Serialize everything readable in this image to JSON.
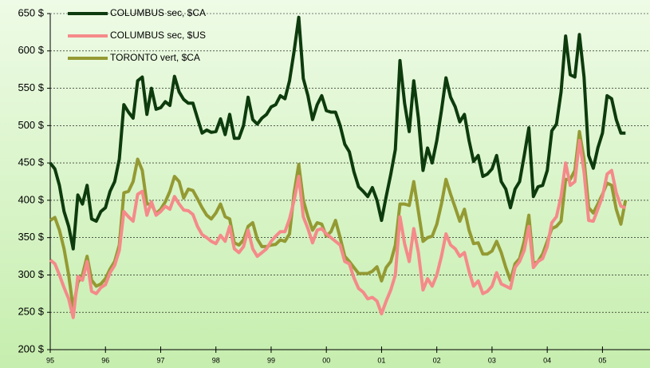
{
  "chart_data": {
    "type": "line",
    "categories": [
      "95",
      null,
      null,
      null,
      null,
      null,
      null,
      null,
      null,
      null,
      null,
      null,
      "96",
      null,
      null,
      null,
      null,
      null,
      null,
      null,
      null,
      null,
      null,
      null,
      "97",
      null,
      null,
      null,
      null,
      null,
      null,
      null,
      null,
      null,
      null,
      null,
      "98",
      null,
      null,
      null,
      null,
      null,
      null,
      null,
      null,
      null,
      null,
      null,
      "99",
      null,
      null,
      null,
      null,
      null,
      null,
      null,
      null,
      null,
      null,
      null,
      "00",
      null,
      null,
      null,
      null,
      null,
      null,
      null,
      null,
      null,
      null,
      null,
      "01",
      null,
      null,
      null,
      null,
      null,
      null,
      null,
      null,
      null,
      null,
      null,
      "02",
      null,
      null,
      null,
      null,
      null,
      null,
      null,
      null,
      null,
      null,
      null,
      "03",
      null,
      null,
      null,
      null,
      null,
      null,
      null,
      null,
      null,
      null,
      null,
      "04",
      null,
      null,
      null,
      null,
      null,
      null,
      null,
      null,
      null,
      null,
      null,
      "05",
      null,
      null,
      null,
      null,
      null
    ],
    "series": [
      {
        "name": "COLUMBUS sec, $CA",
        "color": "#0d3b0d",
        "values": [
          450,
          442,
          420,
          385,
          365,
          335,
          407,
          395,
          420,
          375,
          372,
          385,
          390,
          412,
          425,
          455,
          528,
          518,
          510,
          560,
          565,
          515,
          550,
          522,
          524,
          532,
          527,
          566,
          545,
          535,
          530,
          530,
          510,
          490,
          494,
          491,
          492,
          509,
          488,
          515,
          483,
          483,
          500,
          538,
          508,
          502,
          510,
          515,
          525,
          528,
          540,
          536,
          560,
          600,
          645,
          563,
          540,
          508,
          528,
          540,
          520,
          518,
          518,
          500,
          475,
          465,
          438,
          418,
          412,
          405,
          417,
          400,
          373,
          405,
          435,
          468,
          587,
          530,
          492,
          560,
          510,
          440,
          470,
          450,
          480,
          520,
          564,
          538,
          525,
          505,
          515,
          480,
          452,
          460,
          432,
          435,
          442,
          460,
          425,
          415,
          390,
          415,
          425,
          460,
          497,
          405,
          418,
          420,
          440,
          493,
          502,
          545,
          620,
          568,
          565,
          622,
          565,
          460,
          443,
          470,
          490,
          540,
          536,
          508,
          490,
          490
        ]
      },
      {
        "name": "COLUMBUS sec, $US",
        "color": "#f58a8a",
        "values": [
          320,
          315,
          300,
          283,
          268,
          243,
          298,
          293,
          318,
          278,
          275,
          283,
          287,
          303,
          313,
          333,
          385,
          378,
          372,
          408,
          412,
          380,
          398,
          380,
          385,
          392,
          388,
          405,
          395,
          387,
          386,
          381,
          365,
          354,
          350,
          345,
          342,
          353,
          345,
          365,
          335,
          330,
          338,
          360,
          335,
          325,
          330,
          335,
          345,
          352,
          358,
          358,
          375,
          400,
          432,
          378,
          362,
          343,
          360,
          362,
          355,
          350,
          345,
          340,
          318,
          315,
          296,
          282,
          277,
          268,
          270,
          265,
          248,
          265,
          280,
          300,
          378,
          342,
          318,
          362,
          330,
          280,
          295,
          285,
          300,
          325,
          355,
          340,
          335,
          325,
          330,
          305,
          285,
          292,
          275,
          278,
          285,
          303,
          288,
          285,
          282,
          310,
          318,
          333,
          365,
          310,
          318,
          322,
          338,
          370,
          378,
          405,
          450,
          420,
          425,
          480,
          438,
          373,
          372,
          388,
          405,
          435,
          440,
          410,
          392,
          390
        ]
      },
      {
        "name": "TORONTO vert, $CA",
        "color": "#949a33",
        "values": [
          373,
          377,
          360,
          335,
          300,
          255,
          290,
          300,
          325,
          293,
          285,
          288,
          295,
          308,
          318,
          340,
          410,
          412,
          425,
          455,
          440,
          395,
          395,
          382,
          388,
          398,
          412,
          432,
          425,
          403,
          415,
          413,
          402,
          390,
          380,
          375,
          383,
          395,
          378,
          375,
          343,
          340,
          347,
          365,
          370,
          348,
          338,
          338,
          340,
          341,
          347,
          345,
          355,
          410,
          448,
          400,
          378,
          360,
          370,
          368,
          352,
          358,
          373,
          350,
          325,
          318,
          310,
          302,
          302,
          302,
          305,
          311,
          292,
          310,
          318,
          340,
          395,
          395,
          393,
          425,
          385,
          345,
          350,
          352,
          368,
          395,
          428,
          408,
          390,
          372,
          388,
          360,
          342,
          343,
          328,
          328,
          332,
          345,
          330,
          310,
          293,
          315,
          322,
          345,
          380,
          315,
          318,
          328,
          345,
          362,
          365,
          372,
          428,
          428,
          440,
          492,
          455,
          390,
          383,
          395,
          408,
          423,
          420,
          388,
          368,
          400
        ]
      }
    ],
    "ylim": [
      200,
      650
    ],
    "yticks": [
      {
        "value": 200,
        "label": "200 $"
      },
      {
        "value": 250,
        "label": "250 $"
      },
      {
        "value": 300,
        "label": "300 $"
      },
      {
        "value": 350,
        "label": "350 $"
      },
      {
        "value": 400,
        "label": "400 $"
      },
      {
        "value": 450,
        "label": "450 $"
      },
      {
        "value": 500,
        "label": "500 $"
      },
      {
        "value": 550,
        "label": "550 $"
      },
      {
        "value": 600,
        "label": "600 $"
      },
      {
        "value": 650,
        "label": "650 $"
      }
    ],
    "grid": true,
    "legend": "top-left"
  }
}
